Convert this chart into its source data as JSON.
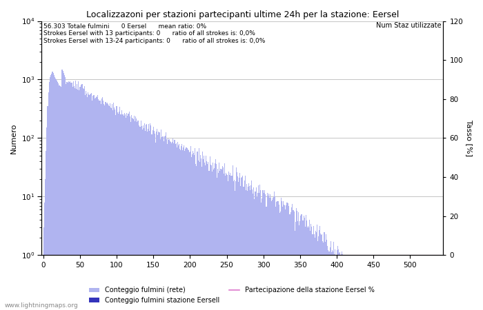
{
  "title": "Localizzazoni per stazioni partecipanti ultime 24h per la stazione: Eersel",
  "ylabel_left": "Numero",
  "ylabel_right": "Tasso [%]",
  "annotation_line1": "56.303 Totale fulmini      0 Eersel      mean ratio: 0%",
  "annotation_line2": "Strokes Eersel with 13 participants: 0      ratio of all strokes is: 0,0%",
  "annotation_line3": "Strokes Eersel with 13-24 participants: 0      ratio of all strokes is: 0,0%",
  "bar_color_light": "#b0b4f0",
  "bar_color_dark": "#3333bb",
  "line_color": "#dd77cc",
  "grid_color": "#bbbbbb",
  "background_color": "#ffffff",
  "watermark": "www.lightningmaps.org",
  "legend_label1": "Conteggio fulmini (rete)",
  "legend_label2": "Conteggio fulmini stazione Eersel",
  "legend_label3": "Partecipazione della stazione Eersel %",
  "legend_label4": "Num Staz utilizzate",
  "xlim_max": 540,
  "ylim_right": [
    0,
    120
  ],
  "num_bars": 540
}
